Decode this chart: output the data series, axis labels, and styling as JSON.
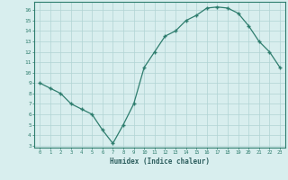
{
  "x": [
    0,
    1,
    2,
    3,
    4,
    5,
    6,
    7,
    8,
    9,
    10,
    11,
    12,
    13,
    14,
    15,
    16,
    17,
    18,
    19,
    20,
    21,
    22,
    23
  ],
  "y": [
    9,
    8.5,
    8,
    7,
    6.5,
    6,
    4.5,
    3.2,
    5,
    7,
    10.5,
    12,
    13.5,
    14,
    15,
    15.5,
    16.2,
    16.3,
    16.2,
    15.7,
    14.5,
    13,
    12,
    10.5
  ],
  "line_color": "#2e7d6e",
  "marker": "+",
  "bg_color": "#d8eeee",
  "grid_color": "#b0d4d4",
  "xlabel": "Humidex (Indice chaleur)",
  "xlim": [
    -0.5,
    23.5
  ],
  "ylim": [
    2.8,
    16.8
  ],
  "yticks": [
    3,
    4,
    5,
    6,
    7,
    8,
    9,
    10,
    11,
    12,
    13,
    14,
    15,
    16
  ],
  "xticks": [
    0,
    1,
    2,
    3,
    4,
    5,
    6,
    7,
    8,
    9,
    10,
    11,
    12,
    13,
    14,
    15,
    16,
    17,
    18,
    19,
    20,
    21,
    22,
    23
  ],
  "tick_color": "#2e7d6e",
  "label_color": "#2e5f5f",
  "axis_color": "#2e7d6e",
  "spine_color": "#2e7d6e"
}
